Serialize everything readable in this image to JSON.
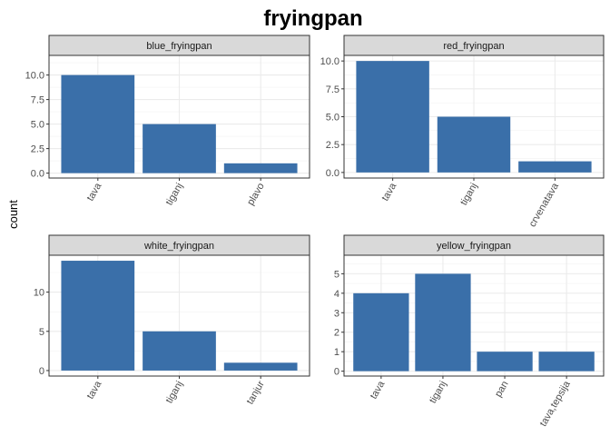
{
  "chart_data": {
    "type": "bar",
    "title": "fryingpan",
    "ylabel": "count",
    "xlabel": "",
    "bar_color": "#3A6FA9",
    "facets": [
      {
        "name": "blue_fryingpan",
        "categories": [
          "tava",
          "tiganj",
          "plavo"
        ],
        "values": [
          10,
          5,
          1
        ],
        "ylim": [
          -0.5,
          12.0
        ],
        "yticks": [
          0,
          2.5,
          5,
          7.5,
          10
        ],
        "ytick_labels": [
          "0.0",
          "2.5",
          "5.0",
          "7.5",
          "10.0"
        ]
      },
      {
        "name": "red_fryingpan",
        "categories": [
          "tava",
          "tiganj",
          "crvenatava"
        ],
        "values": [
          10,
          5,
          1
        ],
        "ylim": [
          -0.5,
          10.5
        ],
        "yticks": [
          0,
          2.5,
          5,
          7.5,
          10
        ],
        "ytick_labels": [
          "0.0",
          "2.5",
          "5.0",
          "7.5",
          "10.0"
        ]
      },
      {
        "name": "white_fryingpan",
        "categories": [
          "tava",
          "tiganj",
          "tanjur"
        ],
        "values": [
          14,
          5,
          1
        ],
        "ylim": [
          -0.7,
          14.7
        ],
        "yticks": [
          0,
          5,
          10
        ],
        "ytick_labels": [
          "0",
          "5",
          "10"
        ]
      },
      {
        "name": "yellow_fryingpan",
        "categories": [
          "tava",
          "tiganj",
          "pan",
          "tava,tepsija"
        ],
        "values": [
          4,
          5,
          1,
          1
        ],
        "ylim": [
          -0.25,
          5.95
        ],
        "yticks": [
          0,
          1,
          2,
          3,
          4,
          5
        ],
        "ytick_labels": [
          "0",
          "1",
          "2",
          "3",
          "4",
          "5"
        ]
      }
    ]
  }
}
